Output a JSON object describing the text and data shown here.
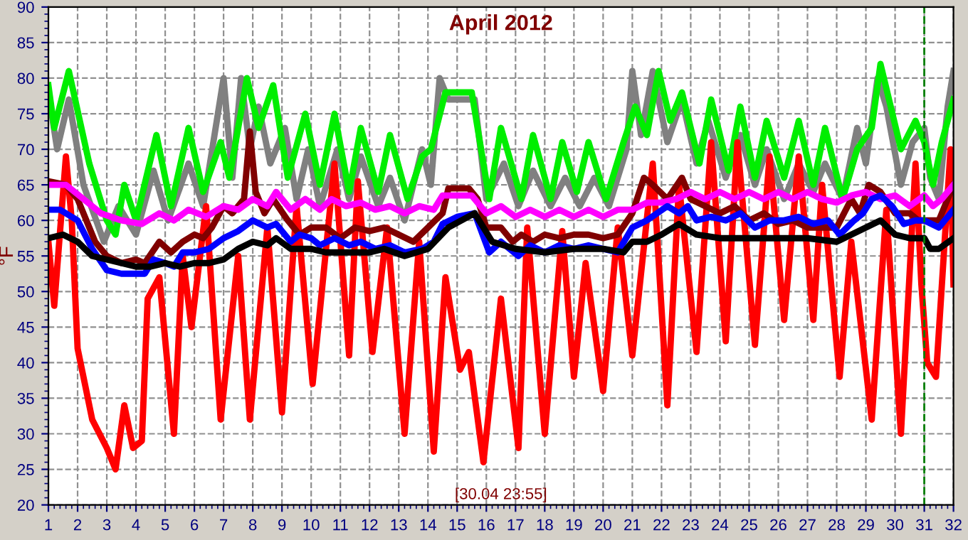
{
  "chart_data": {
    "type": "line",
    "title": "April 2012",
    "ylabel": "°F",
    "annotations": [
      "[30.04 23:55]"
    ],
    "xlim": [
      1,
      32
    ],
    "xticks": [
      1,
      2,
      3,
      4,
      5,
      6,
      7,
      8,
      9,
      10,
      11,
      12,
      13,
      14,
      15,
      16,
      17,
      18,
      19,
      20,
      21,
      22,
      23,
      24,
      25,
      26,
      27,
      28,
      29,
      30,
      31,
      32
    ],
    "ylim": [
      20,
      90
    ],
    "yticks": [
      20,
      25,
      30,
      35,
      40,
      45,
      50,
      55,
      60,
      65,
      70,
      75,
      80,
      85,
      90
    ],
    "grid": true,
    "legend": false,
    "line_style": "solid",
    "marker": "none",
    "ref_lines": [
      {
        "axis": "x",
        "value": 31,
        "color": "#008000",
        "line_style": "dashed"
      }
    ],
    "series": [
      {
        "color": "#808080",
        "x": [
          1,
          1.3,
          1.7,
          2.2,
          2.9,
          3.4,
          4,
          4.6,
          5.1,
          5.8,
          6.3,
          7,
          7.3,
          7.6,
          7.9,
          8.2,
          8.6,
          9.1,
          9.5,
          9.9,
          10.3,
          10.9,
          11.3,
          11.7,
          12.3,
          12.7,
          13.2,
          13.8,
          14.1,
          14.4,
          14.7,
          15.6,
          16,
          16.6,
          17.1,
          17.6,
          18.2,
          18.7,
          19.2,
          19.7,
          20.2,
          20.8,
          21,
          21.3,
          21.7,
          22.2,
          22.7,
          23.2,
          23.6,
          24.2,
          24.7,
          25.2,
          25.6,
          26.2,
          26.7,
          27.2,
          27.6,
          28.2,
          28.7,
          29,
          29.4,
          29.7,
          30.2,
          30.6,
          31,
          31.2,
          31.5,
          31.8,
          32
        ],
        "values": [
          78,
          70,
          77,
          65,
          57,
          62,
          58,
          67,
          60,
          68,
          62,
          80,
          66,
          80,
          70,
          76,
          68,
          73,
          63,
          70,
          62,
          70,
          63,
          69,
          62,
          66,
          60,
          70,
          65,
          80,
          77,
          77,
          63,
          68,
          62,
          67,
          62,
          66,
          62,
          66,
          62,
          70,
          81,
          72,
          81,
          71,
          77,
          68,
          74,
          66,
          72,
          65,
          70,
          63,
          68,
          64,
          68,
          63,
          73,
          68,
          80,
          76,
          65,
          71,
          73,
          66,
          63,
          76,
          81
        ]
      },
      {
        "color": "#00ee00",
        "x": [
          1,
          1.2,
          1.7,
          2.4,
          3,
          3.3,
          3.6,
          4,
          4.7,
          5.2,
          5.8,
          6.3,
          6.9,
          7.2,
          7.8,
          8.2,
          8.7,
          9.2,
          9.8,
          10.3,
          10.8,
          11.3,
          11.7,
          12.3,
          12.7,
          13.3,
          13.8,
          14.1,
          14.6,
          15.5,
          16.1,
          16.5,
          17.2,
          17.6,
          18.2,
          18.6,
          19.1,
          19.5,
          20.1,
          20.7,
          21.1,
          21.5,
          21.9,
          22.3,
          22.7,
          23.3,
          23.7,
          24.3,
          24.7,
          25.2,
          25.6,
          26.2,
          26.7,
          27.2,
          27.6,
          28.2,
          28.7,
          29.2,
          29.5,
          30.2,
          30.7,
          31,
          31.3,
          31.6,
          32
        ],
        "values": [
          79,
          73,
          81,
          68,
          60,
          58,
          65,
          60,
          72,
          62,
          73,
          64,
          71,
          66,
          80,
          73,
          79,
          66,
          75,
          65,
          75,
          64,
          73,
          64,
          72,
          63,
          69,
          70,
          78,
          78,
          63,
          73,
          63,
          72,
          63,
          71,
          64,
          71,
          63,
          71,
          76,
          72,
          81,
          74,
          78,
          68,
          77,
          67,
          76,
          66,
          74,
          66,
          74,
          65,
          73,
          63,
          70,
          73,
          82,
          70,
          74,
          71,
          65,
          71,
          77
        ]
      },
      {
        "color": "#ff0000",
        "x": [
          1,
          1.2,
          1.6,
          1.8,
          2,
          2.5,
          3,
          3.3,
          3.6,
          3.9,
          4.2,
          4.4,
          4.8,
          5.3,
          5.6,
          5.9,
          6.4,
          6.9,
          7.5,
          7.9,
          8.5,
          9,
          9.5,
          10.05,
          10.8,
          11.3,
          11.6,
          12.1,
          12.6,
          13.2,
          13.7,
          14.2,
          14.6,
          15.1,
          15.4,
          15.9,
          16.5,
          17.1,
          17.4,
          18,
          18.6,
          19,
          19.4,
          20,
          20.5,
          21,
          21.7,
          22.2,
          22.6,
          23.2,
          23.7,
          24.2,
          24.6,
          25.2,
          25.7,
          26.2,
          26.7,
          27.2,
          27.5,
          28.1,
          28.5,
          29.2,
          29.7,
          30.2,
          30.7,
          30.9,
          31.1,
          31.4,
          31.9,
          32
        ],
        "values": [
          57,
          48,
          69,
          60,
          42,
          32,
          28,
          25,
          34,
          28,
          29,
          49,
          52,
          30,
          55,
          45,
          62,
          32,
          55,
          32,
          59,
          33,
          62,
          37,
          68,
          41,
          65.5,
          41.5,
          59,
          30,
          57,
          27.5,
          52,
          39,
          41.5,
          26,
          49,
          28,
          59,
          30,
          58.5,
          38,
          54,
          36,
          59,
          41,
          68,
          34,
          65,
          41.5,
          71,
          43,
          71,
          42.5,
          69,
          46,
          69,
          46,
          65,
          38,
          57,
          32,
          61.5,
          30,
          68,
          51,
          40,
          38,
          70,
          51
        ]
      },
      {
        "color": "#800000",
        "x": [
          1,
          1.6,
          2,
          2.6,
          3,
          3.5,
          4,
          4.3,
          4.8,
          5.2,
          5.6,
          6,
          6.3,
          6.6,
          7,
          7.3,
          7.7,
          7.9,
          8.1,
          8.4,
          8.7,
          9.2,
          9.6,
          10,
          10.5,
          11,
          11.5,
          12,
          12.5,
          13,
          13.5,
          14,
          14.5,
          14.7,
          15.4,
          15.7,
          16,
          16.5,
          16.9,
          17.2,
          17.6,
          18,
          18.5,
          19,
          19.5,
          20,
          20.5,
          21,
          21.4,
          21.7,
          22.2,
          22.7,
          23,
          23.5,
          24,
          24.5,
          25,
          25.5,
          26,
          26.5,
          27,
          27.5,
          28,
          28.5,
          28.8,
          29.1,
          29.5,
          30,
          30.5,
          30.8,
          31,
          31.5,
          32
        ],
        "values": [
          65.5,
          65,
          63,
          57,
          55,
          54,
          54.5,
          54,
          57,
          55.5,
          57,
          58,
          57.5,
          59,
          62,
          61,
          63,
          72.5,
          64,
          61,
          63,
          60,
          58,
          59,
          59,
          57.5,
          59,
          58.5,
          59,
          58,
          57,
          59,
          61,
          64.5,
          64.5,
          63,
          59,
          59,
          57,
          58,
          57,
          58,
          57.5,
          58,
          58,
          57.5,
          58,
          61,
          66,
          65,
          63,
          66,
          63,
          62,
          61,
          62,
          60,
          61,
          59.5,
          60,
          59,
          59,
          59,
          63,
          61,
          65,
          64,
          61,
          61,
          60,
          60,
          60,
          65
        ]
      },
      {
        "color": "#ff00ff",
        "x": [
          1,
          1.6,
          2.2,
          2.8,
          3.5,
          4.2,
          4.8,
          5.3,
          5.8,
          6.4,
          7,
          7.5,
          8,
          8.5,
          8.8,
          9.3,
          9.8,
          10.3,
          10.7,
          11.2,
          11.7,
          12.2,
          12.7,
          13.2,
          13.7,
          14.2,
          14.5,
          15.5,
          16,
          16.5,
          17,
          17.5,
          18,
          18.5,
          19,
          19.5,
          20,
          20.5,
          21,
          21.5,
          22,
          22.5,
          23,
          23.5,
          24,
          24.5,
          25,
          25.5,
          26,
          26.5,
          27,
          27.5,
          28,
          28.5,
          29,
          29.5,
          30,
          30.5,
          31,
          31.3,
          31.6,
          32
        ],
        "values": [
          65,
          65,
          63,
          61,
          60,
          59.5,
          61,
          60,
          61.5,
          60.5,
          62,
          61.5,
          63,
          62,
          64,
          61.5,
          63,
          61.5,
          63,
          62,
          62.5,
          61.5,
          62,
          61,
          62,
          61.5,
          63.5,
          63.5,
          61,
          62,
          60.5,
          61.5,
          60.5,
          61.5,
          60.5,
          61.5,
          60.5,
          61.5,
          61.5,
          62.5,
          62.5,
          63,
          64,
          63,
          64,
          63,
          64,
          63,
          64,
          63,
          64,
          63,
          62.5,
          63.5,
          64,
          63,
          63.5,
          62,
          63.5,
          62,
          63,
          65
        ]
      },
      {
        "color": "#0000ff",
        "x": [
          1,
          1.4,
          2,
          2.5,
          3,
          3.5,
          4,
          4.3,
          4.6,
          5,
          5.3,
          5.6,
          6,
          6.5,
          7,
          7.5,
          8,
          8.5,
          8.8,
          9.3,
          9.6,
          10,
          10.3,
          10.8,
          11.3,
          11.7,
          12.2,
          12.7,
          13.2,
          13.8,
          14.2,
          14.5,
          15,
          15.6,
          16.1,
          16.5,
          17.1,
          17.5,
          18,
          18.5,
          19,
          19.5,
          20,
          20.5,
          21,
          21.5,
          22.2,
          22.6,
          22.9,
          23.2,
          23.7,
          24.2,
          24.7,
          25.2,
          25.7,
          26.2,
          26.7,
          27.2,
          27.7,
          28.1,
          28.6,
          28.9,
          29.2,
          29.5,
          29.9,
          30.3,
          30.7,
          31,
          31.5,
          32
        ],
        "values": [
          61.5,
          61.5,
          60,
          56,
          53,
          52.5,
          52.5,
          52.5,
          54.5,
          54,
          53.5,
          55.5,
          55.5,
          56,
          57.5,
          58.5,
          60,
          59,
          59.5,
          57,
          58,
          57.5,
          56.5,
          57.5,
          56.5,
          57,
          56,
          56.5,
          55.5,
          56,
          57,
          59.5,
          60.5,
          61,
          55.5,
          57,
          55,
          56.5,
          55.5,
          56.5,
          56,
          56.5,
          56,
          55.5,
          59,
          60,
          62,
          61,
          62,
          60,
          60.5,
          60,
          61,
          59,
          60,
          60,
          60.5,
          59.5,
          60,
          58,
          60,
          61,
          63,
          63.5,
          62,
          59.5,
          60,
          60,
          59,
          61.5
        ]
      },
      {
        "color": "#000000",
        "x": [
          1,
          1.5,
          2,
          2.5,
          3,
          3.5,
          4,
          4.5,
          5,
          5.5,
          6,
          6.5,
          7,
          7.5,
          8,
          8.5,
          8.8,
          9.3,
          10,
          10.5,
          11,
          12,
          12.5,
          13.2,
          14,
          14.7,
          15.6,
          16.2,
          17,
          18,
          19,
          20,
          20.7,
          21,
          21.5,
          22,
          22.6,
          23.2,
          24,
          25,
          26,
          27,
          28,
          28.5,
          29,
          29.5,
          30,
          30.5,
          31,
          31.2,
          31.5,
          32
        ],
        "values": [
          57.5,
          58,
          57,
          55,
          54.5,
          54,
          53.5,
          53.5,
          54,
          53.5,
          54,
          54,
          54.5,
          56,
          57,
          56.5,
          57.5,
          56,
          56,
          55.5,
          55.5,
          55.5,
          56,
          55,
          56,
          59,
          61,
          57,
          56,
          55.5,
          56,
          56,
          55.5,
          57,
          57,
          58,
          59.5,
          58,
          57.5,
          57.5,
          57.5,
          57.5,
          57,
          58,
          59,
          60,
          58,
          57.5,
          57.5,
          56,
          56,
          57.5
        ]
      }
    ]
  }
}
